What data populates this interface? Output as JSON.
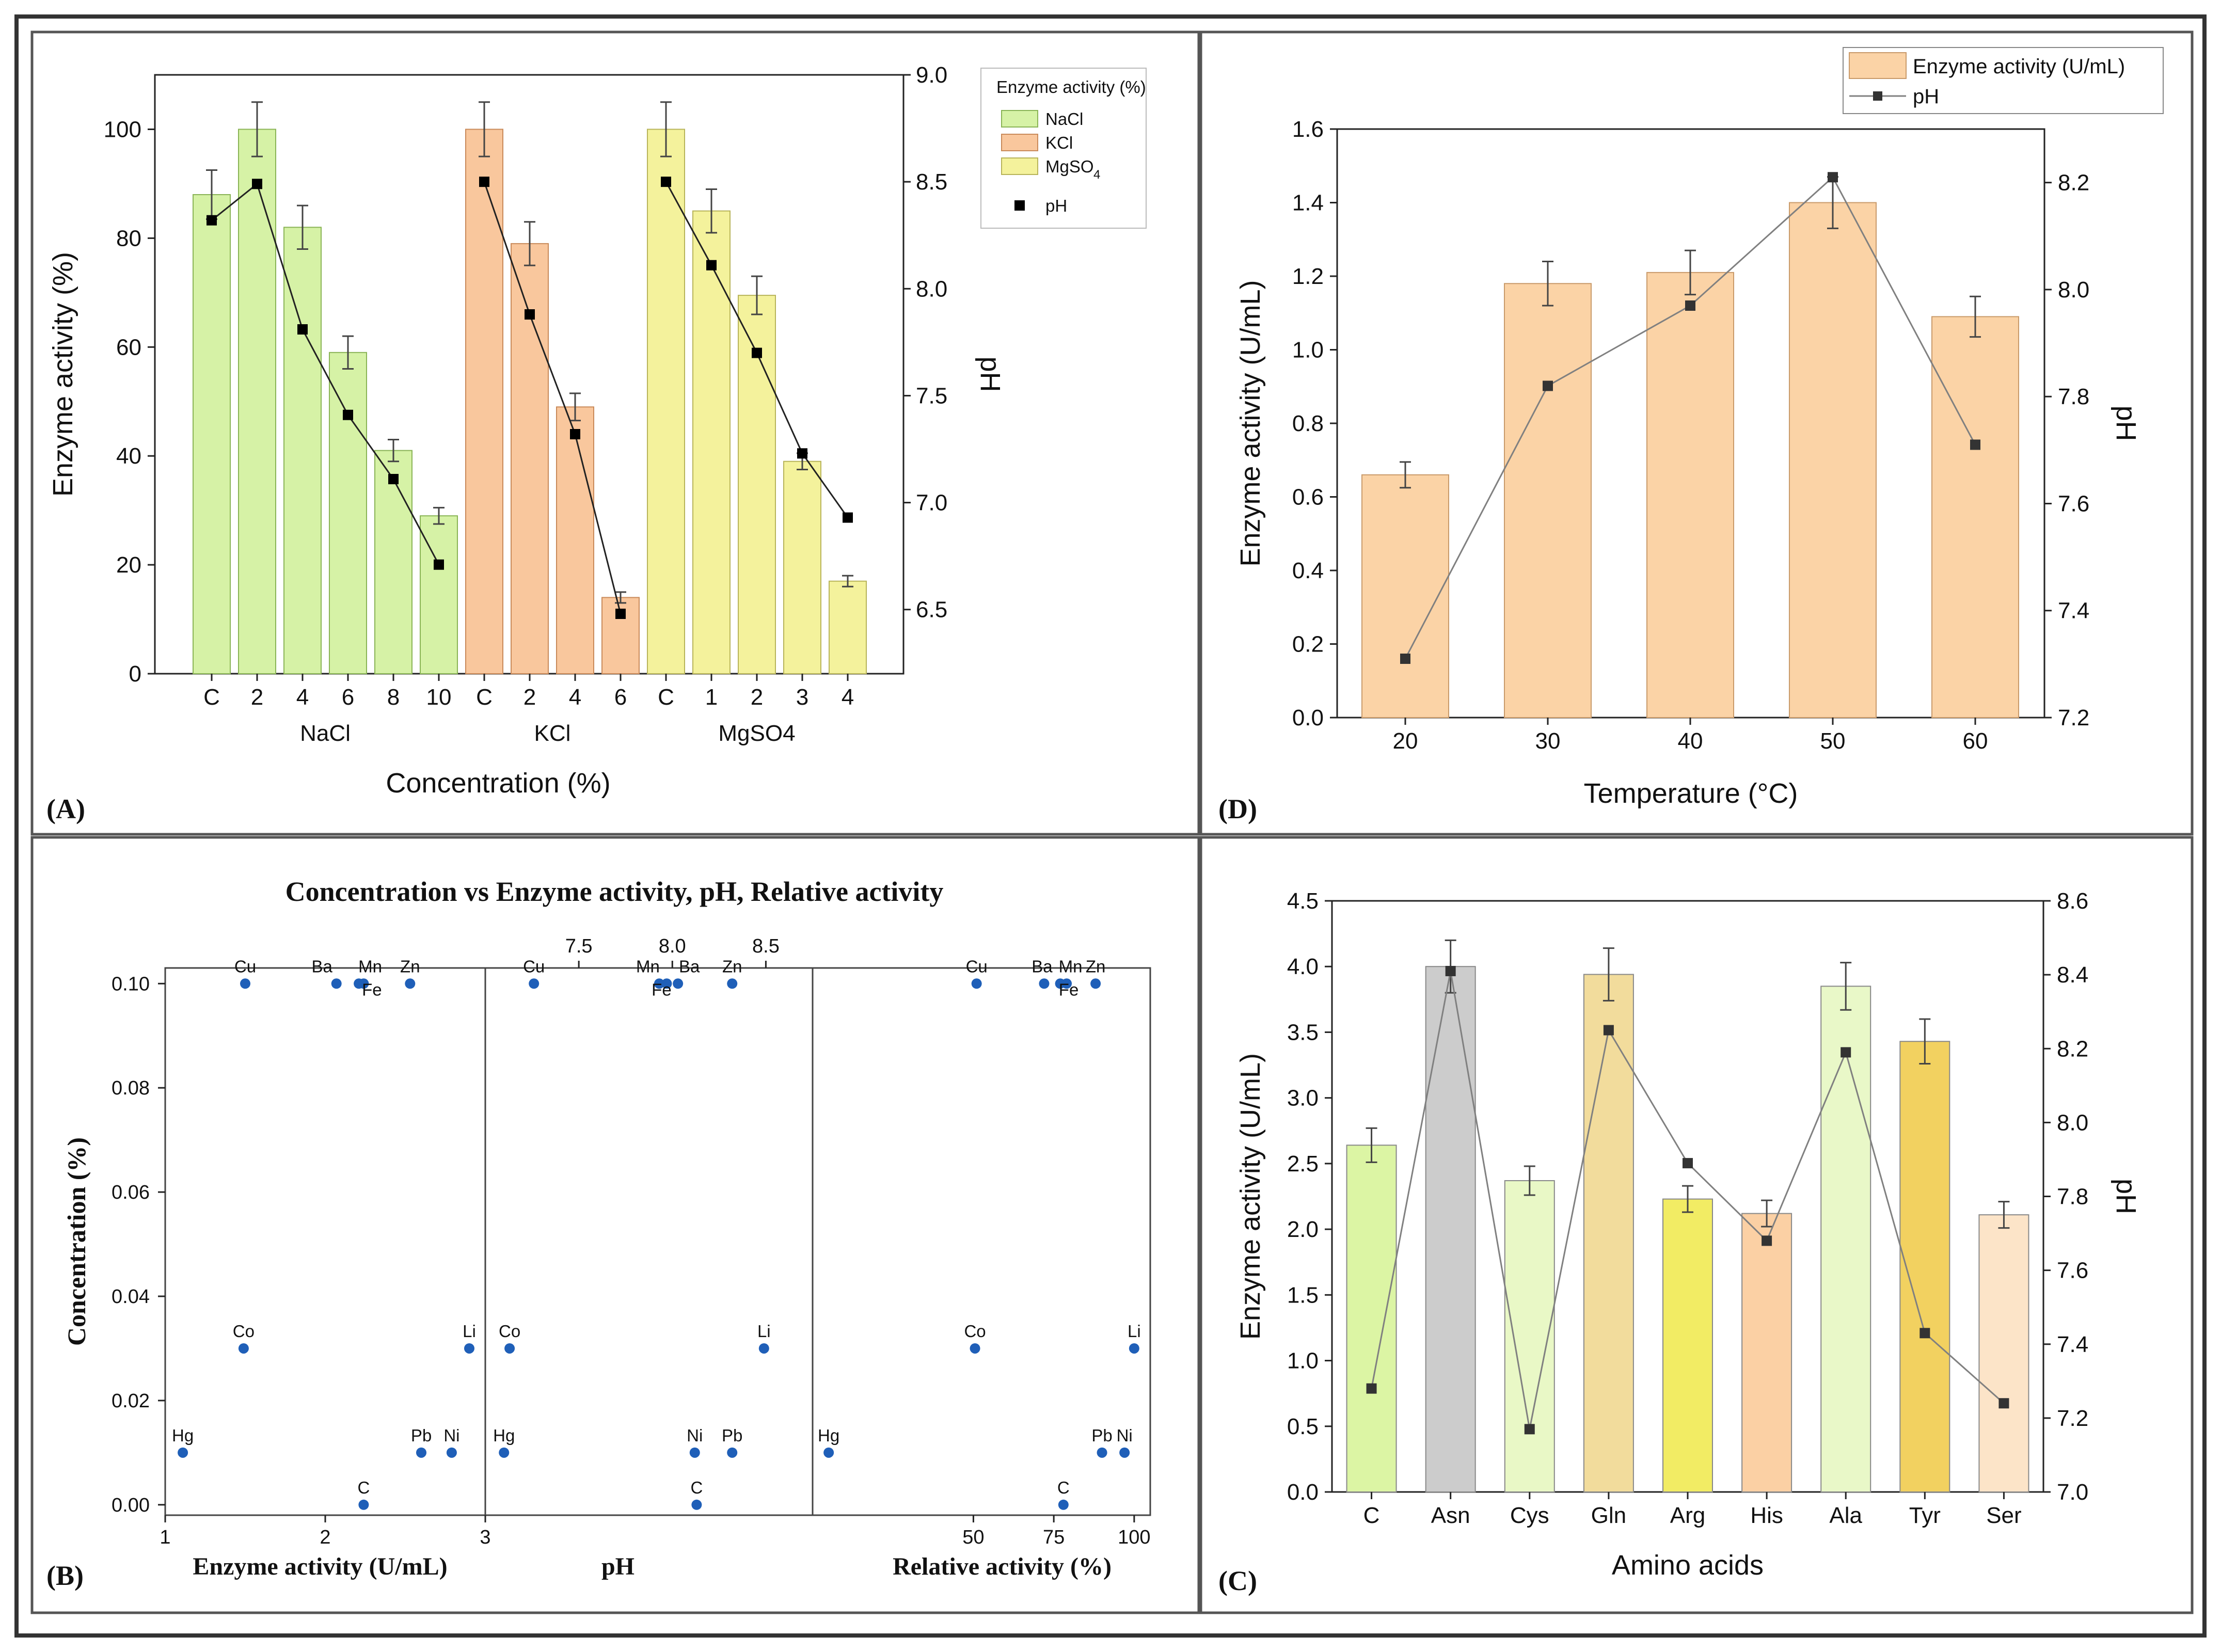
{
  "colors": {
    "nacl": "#d6f2a6",
    "nacl_edge": "#8ab456",
    "kcl": "#f9c79d",
    "kcl_edge": "#c98a5a",
    "mgso4": "#f4f29c",
    "mgso4_edge": "#b8b45a",
    "temp_bar": "#fbd3a6",
    "temp_edge": "#c99a6a",
    "ph_marker": "#000000",
    "ph_line_d": "#808080",
    "scatter": "#1f5fb8"
  },
  "chart_data": [
    {
      "id": "A",
      "panel_label": "(A)",
      "type": "bar",
      "xlabel": "Concentration (%)",
      "ylabel": "Enzyme activity (%)",
      "y2label": "pH",
      "ylim": [
        0,
        110
      ],
      "y2lim": [
        6.2,
        9.0
      ],
      "yticks": [
        "0",
        "20",
        "40",
        "60",
        "80",
        "100"
      ],
      "y2ticks": [
        "6.5",
        "7.0",
        "7.5",
        "8.0",
        "8.5",
        "9.0"
      ],
      "legend_title": "Enzyme activity (%)",
      "legend_entries": [
        "NaCl",
        "KCl",
        "MgSO",
        "4",
        "pH"
      ],
      "groups": [
        {
          "name": "NaCl",
          "categories": [
            "C",
            "2",
            "4",
            "6",
            "8",
            "10"
          ],
          "values": [
            88,
            100,
            82,
            59,
            41,
            29
          ],
          "errors": [
            4.5,
            5,
            4,
            3,
            2,
            1.5
          ],
          "ph": [
            8.32,
            8.49,
            7.81,
            7.41,
            7.11,
            6.71
          ]
        },
        {
          "name": "KCl",
          "categories": [
            "C",
            "2",
            "4",
            "6"
          ],
          "values": [
            100,
            79,
            49,
            14
          ],
          "errors": [
            5,
            4,
            2.5,
            1
          ],
          "ph": [
            8.5,
            7.88,
            7.32,
            6.48
          ]
        },
        {
          "name": "MgSO4",
          "categories": [
            "C",
            "1",
            "2",
            "3",
            "4"
          ],
          "values": [
            100,
            85,
            69.5,
            39,
            17
          ],
          "errors": [
            5,
            4,
            3.5,
            1.5,
            1
          ],
          "ph": [
            8.5,
            8.11,
            7.7,
            7.23,
            6.93
          ]
        }
      ]
    },
    {
      "id": "D",
      "panel_label": "(D)",
      "type": "bar",
      "xlabel": "Temperature (°C)",
      "ylabel": "Enzyme activity (U/mL)",
      "y2label": "pH",
      "ylim": [
        0,
        1.6
      ],
      "y2lim": [
        7.2,
        8.3
      ],
      "yticks": [
        "0.0",
        "0.2",
        "0.4",
        "0.6",
        "0.8",
        "1.0",
        "1.2",
        "1.4",
        "1.6"
      ],
      "y2ticks": [
        "7.2",
        "7.4",
        "7.6",
        "7.8",
        "8.0",
        "8.2"
      ],
      "legend_entries": [
        "Enzyme activity (U/mL)",
        "pH"
      ],
      "categories": [
        "20",
        "30",
        "40",
        "50",
        "60"
      ],
      "values": [
        0.66,
        1.18,
        1.21,
        1.4,
        1.09
      ],
      "errors": [
        0.035,
        0.06,
        0.06,
        0.07,
        0.055
      ],
      "ph": [
        7.31,
        7.82,
        7.97,
        8.21,
        7.71
      ]
    },
    {
      "id": "B",
      "panel_label": "(B)",
      "type": "scatter",
      "title": "Concentration vs Enzyme activity, pH, Relative activity",
      "ylabel": "Concentration (%)",
      "ylim": [
        -0.002,
        0.103
      ],
      "yticks": [
        "0.00",
        "0.02",
        "0.04",
        "0.06",
        "0.08",
        "0.10"
      ],
      "panels": [
        {
          "xlabel": "Enzyme activity (U/mL)",
          "xlim": [
            1.0,
            3.0
          ],
          "xticks": [
            "1",
            "2",
            "3"
          ],
          "tick_side": "bottom",
          "points": [
            {
              "label": "Cu",
              "x": 1.5,
              "y": 0.1
            },
            {
              "label": "Ba",
              "x": 2.07,
              "y": 0.1
            },
            {
              "label": "Mn",
              "x": 2.21,
              "y": 0.1
            },
            {
              "label": "Fe",
              "x": 2.24,
              "y": 0.1
            },
            {
              "label": "Zn",
              "x": 2.53,
              "y": 0.1
            },
            {
              "label": "Co",
              "x": 1.49,
              "y": 0.03
            },
            {
              "label": "Li",
              "x": 2.9,
              "y": 0.03
            },
            {
              "label": "Hg",
              "x": 1.11,
              "y": 0.01
            },
            {
              "label": "Pb",
              "x": 2.6,
              "y": 0.01
            },
            {
              "label": "Ni",
              "x": 2.79,
              "y": 0.01
            },
            {
              "label": "C",
              "x": 2.24,
              "y": 0.0
            }
          ]
        },
        {
          "xlabel": "pH",
          "xlim": [
            7.0,
            8.75
          ],
          "xticks": [
            "7.5",
            "8.0",
            "8.5"
          ],
          "tick_side": "top",
          "points": [
            {
              "label": "Cu",
              "x": 7.26,
              "y": 0.1
            },
            {
              "label": "Mn",
              "x": 7.93,
              "y": 0.1
            },
            {
              "label": "Ba",
              "x": 8.03,
              "y": 0.1
            },
            {
              "label": "Fe",
              "x": 7.97,
              "y": 0.1
            },
            {
              "label": "Zn",
              "x": 8.32,
              "y": 0.1
            },
            {
              "label": "Co",
              "x": 7.13,
              "y": 0.03
            },
            {
              "label": "Li",
              "x": 8.49,
              "y": 0.03
            },
            {
              "label": "Hg",
              "x": 7.1,
              "y": 0.01
            },
            {
              "label": "Ni",
              "x": 8.12,
              "y": 0.01
            },
            {
              "label": "Pb",
              "x": 8.32,
              "y": 0.01
            },
            {
              "label": "C",
              "x": 8.13,
              "y": 0.0
            }
          ]
        },
        {
          "xlabel": "Relative activity (%)",
          "xlim": [
            0,
            105
          ],
          "xticks": [
            "50",
            "75",
            "100"
          ],
          "tick_side": "bottom",
          "points": [
            {
              "label": "Cu",
              "x": 51,
              "y": 0.1
            },
            {
              "label": "Ba",
              "x": 72,
              "y": 0.1
            },
            {
              "label": "Mn",
              "x": 77,
              "y": 0.1
            },
            {
              "label": "Fe",
              "x": 79,
              "y": 0.1
            },
            {
              "label": "Zn",
              "x": 88,
              "y": 0.1
            },
            {
              "label": "Co",
              "x": 50.5,
              "y": 0.03
            },
            {
              "label": "Li",
              "x": 100,
              "y": 0.03
            },
            {
              "label": "Hg",
              "x": 5,
              "y": 0.01
            },
            {
              "label": "Pb",
              "x": 90,
              "y": 0.01
            },
            {
              "label": "Ni",
              "x": 97,
              "y": 0.01
            },
            {
              "label": "C",
              "x": 78,
              "y": 0.0
            }
          ]
        }
      ]
    },
    {
      "id": "C",
      "panel_label": "(C)",
      "type": "bar",
      "xlabel": "Amino acids",
      "ylabel": "Enzyme activity (U/mL)",
      "y2label": "pH",
      "ylim": [
        0,
        4.5
      ],
      "y2lim": [
        7.0,
        8.6
      ],
      "yticks": [
        "0.0",
        "0.5",
        "1.0",
        "1.5",
        "2.0",
        "2.5",
        "3.0",
        "3.5",
        "4.0",
        "4.5"
      ],
      "y2ticks": [
        "7.0",
        "7.2",
        "7.4",
        "7.6",
        "7.8",
        "8.0",
        "8.2",
        "8.4",
        "8.6"
      ],
      "categories": [
        "C",
        "Asn",
        "Cys",
        "Gln",
        "Arg",
        "His",
        "Ala",
        "Tyr",
        "Ser"
      ],
      "values": [
        2.64,
        4.0,
        2.37,
        3.94,
        2.23,
        2.12,
        3.85,
        3.43,
        2.11
      ],
      "errors": [
        0.13,
        0.2,
        0.11,
        0.2,
        0.1,
        0.1,
        0.18,
        0.17,
        0.1
      ],
      "ph": [
        7.28,
        8.41,
        7.17,
        8.25,
        7.89,
        7.68,
        8.19,
        7.43,
        7.24
      ],
      "bar_colors": [
        "#dcf5a4",
        "#cccccc",
        "#e9f8c6",
        "#f2dc9c",
        "#f2ec64",
        "#fbd0a4",
        "#e9f8c8",
        "#f2d160",
        "#fce4c8"
      ]
    }
  ]
}
